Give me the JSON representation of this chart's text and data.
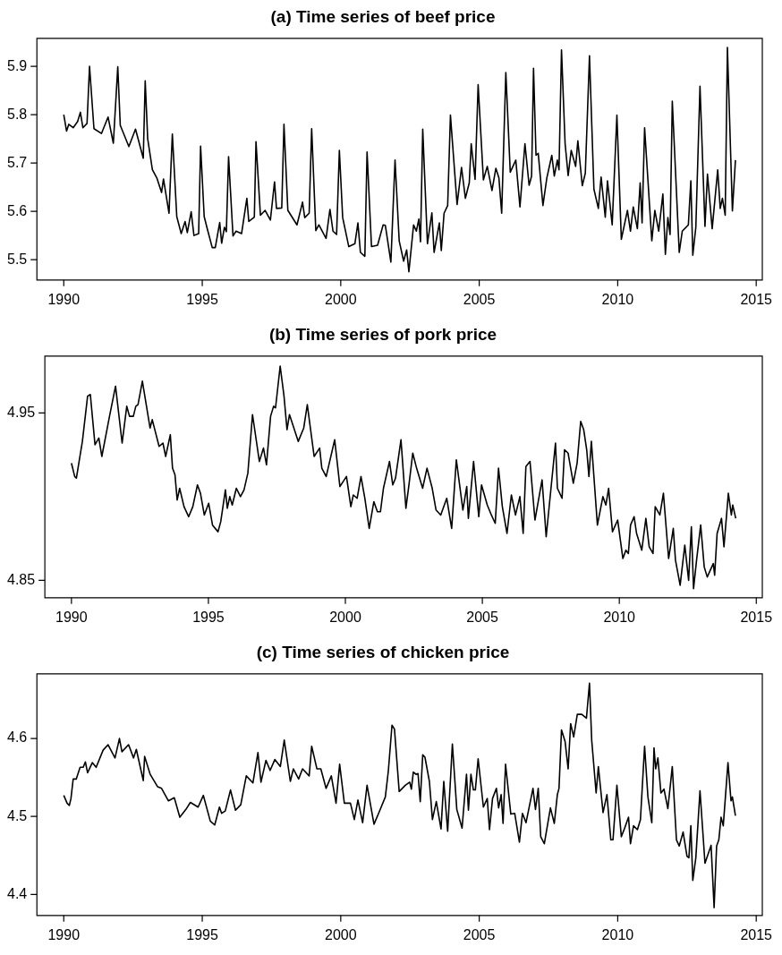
{
  "chart_data": [
    {
      "type": "line",
      "title": "(a) Time series of beef price",
      "xlim": [
        1989.03,
        2015.22
      ],
      "xticks": [
        1990,
        1995,
        2000,
        2005,
        2010,
        2015
      ],
      "ylim": [
        5.458,
        5.958
      ],
      "yticks": [
        5.5,
        5.6,
        5.7,
        5.8,
        5.9
      ],
      "grid": false,
      "legend": false,
      "marker": "none",
      "x": [
        1990.0,
        1990.1,
        1990.18,
        1990.34,
        1990.5,
        1990.6,
        1990.69,
        1990.84,
        1990.93,
        1991.09,
        1991.36,
        1991.6,
        1991.79,
        1991.95,
        1992.04,
        1992.35,
        1992.59,
        1992.87,
        1992.94,
        1993.03,
        1993.2,
        1993.36,
        1993.53,
        1993.6,
        1993.8,
        1993.92,
        1994.08,
        1994.24,
        1994.38,
        1994.46,
        1994.6,
        1994.7,
        1994.87,
        1994.94,
        1995.07,
        1995.18,
        1995.36,
        1995.47,
        1995.63,
        1995.7,
        1995.8,
        1995.87,
        1995.95,
        1996.11,
        1996.22,
        1996.42,
        1996.61,
        1996.68,
        1996.88,
        1996.94,
        1997.1,
        1997.27,
        1997.46,
        1997.61,
        1997.68,
        1997.87,
        1997.95,
        1998.09,
        1998.42,
        1998.62,
        1998.7,
        1998.86,
        1998.95,
        1999.1,
        1999.21,
        1999.47,
        1999.61,
        1999.72,
        1999.85,
        1999.95,
        2000.07,
        2000.29,
        2000.51,
        2000.62,
        2000.71,
        2000.87,
        2000.95,
        2001.11,
        2001.33,
        2001.53,
        2001.61,
        2001.81,
        2001.96,
        2002.11,
        2002.27,
        2002.38,
        2002.46,
        2002.63,
        2002.73,
        2002.82,
        2002.88,
        2002.96,
        2003.13,
        2003.29,
        2003.37,
        2003.56,
        2003.63,
        2003.73,
        2003.86,
        2003.96,
        2004.2,
        2004.36,
        2004.5,
        2004.64,
        2004.71,
        2004.85,
        2004.96,
        2005.15,
        2005.29,
        2005.46,
        2005.6,
        2005.71,
        2005.81,
        2005.96,
        2006.12,
        2006.32,
        2006.47,
        2006.65,
        2006.8,
        2006.89,
        2006.96,
        2007.05,
        2007.13,
        2007.3,
        2007.44,
        2007.62,
        2007.71,
        2007.82,
        2007.88,
        2007.97,
        2008.1,
        2008.21,
        2008.32,
        2008.48,
        2008.56,
        2008.72,
        2008.83,
        2008.98,
        2009.14,
        2009.3,
        2009.4,
        2009.55,
        2009.63,
        2009.8,
        2009.97,
        2010.13,
        2010.35,
        2010.46,
        2010.56,
        2010.71,
        2010.81,
        2010.88,
        2010.97,
        2011.23,
        2011.34,
        2011.48,
        2011.63,
        2011.72,
        2011.81,
        2011.89,
        2011.97,
        2012.22,
        2012.33,
        2012.55,
        2012.64,
        2012.71,
        2012.82,
        2012.97,
        2013.15,
        2013.24,
        2013.41,
        2013.61,
        2013.7,
        2013.78,
        2013.88,
        2013.96,
        2014.14,
        2014.25
      ],
      "series": [
        {
          "color": "#000000",
          "values": [
            5.8,
            5.766,
            5.78,
            5.773,
            5.786,
            5.805,
            5.773,
            5.782,
            5.9,
            5.771,
            5.761,
            5.795,
            5.741,
            5.899,
            5.778,
            5.734,
            5.77,
            5.71,
            5.87,
            5.75,
            5.686,
            5.669,
            5.639,
            5.667,
            5.596,
            5.76,
            5.589,
            5.554,
            5.579,
            5.556,
            5.599,
            5.55,
            5.554,
            5.735,
            5.589,
            5.564,
            5.525,
            5.525,
            5.577,
            5.534,
            5.567,
            5.558,
            5.713,
            5.549,
            5.559,
            5.554,
            5.627,
            5.579,
            5.588,
            5.744,
            5.592,
            5.602,
            5.582,
            5.661,
            5.606,
            5.607,
            5.78,
            5.602,
            5.572,
            5.619,
            5.587,
            5.596,
            5.771,
            5.56,
            5.572,
            5.544,
            5.604,
            5.559,
            5.552,
            5.726,
            5.587,
            5.527,
            5.533,
            5.576,
            5.515,
            5.507,
            5.723,
            5.527,
            5.53,
            5.572,
            5.571,
            5.495,
            5.706,
            5.539,
            5.497,
            5.52,
            5.475,
            5.572,
            5.559,
            5.584,
            5.537,
            5.77,
            5.533,
            5.597,
            5.515,
            5.576,
            5.519,
            5.596,
            5.612,
            5.799,
            5.614,
            5.691,
            5.627,
            5.659,
            5.74,
            5.666,
            5.862,
            5.665,
            5.693,
            5.643,
            5.689,
            5.669,
            5.596,
            5.887,
            5.681,
            5.706,
            5.609,
            5.74,
            5.654,
            5.673,
            5.896,
            5.716,
            5.72,
            5.612,
            5.669,
            5.716,
            5.673,
            5.706,
            5.686,
            5.934,
            5.74,
            5.674,
            5.726,
            5.693,
            5.746,
            5.653,
            5.679,
            5.922,
            5.646,
            5.606,
            5.671,
            5.588,
            5.663,
            5.572,
            5.799,
            5.542,
            5.602,
            5.559,
            5.609,
            5.564,
            5.659,
            5.576,
            5.773,
            5.539,
            5.602,
            5.559,
            5.636,
            5.511,
            5.587,
            5.552,
            5.828,
            5.515,
            5.559,
            5.572,
            5.663,
            5.509,
            5.567,
            5.859,
            5.569,
            5.677,
            5.564,
            5.686,
            5.606,
            5.627,
            5.592,
            5.939,
            5.601,
            5.706
          ]
        }
      ]
    },
    {
      "type": "line",
      "title": "(b) Time series of pork price",
      "xlim": [
        1989.03,
        2015.22
      ],
      "xticks": [
        1990,
        1995,
        2000,
        2005,
        2010,
        2015
      ],
      "ylim": [
        4.8396,
        4.984
      ],
      "yticks": [
        4.85,
        4.95
      ],
      "grid": false,
      "legend": false,
      "marker": "none",
      "x": [
        1990.0,
        1990.12,
        1990.18,
        1990.4,
        1990.59,
        1990.69,
        1990.86,
        1991.0,
        1991.11,
        1991.39,
        1991.61,
        1991.85,
        1992.02,
        1992.12,
        1992.26,
        1992.35,
        1992.43,
        1992.59,
        1992.87,
        1992.95,
        1993.2,
        1993.34,
        1993.44,
        1993.61,
        1993.69,
        1993.78,
        1993.86,
        1993.95,
        1994.11,
        1994.28,
        1994.43,
        1994.6,
        1994.71,
        1994.85,
        1995.01,
        1995.15,
        1995.35,
        1995.45,
        1995.62,
        1995.69,
        1995.78,
        1995.87,
        1996.02,
        1996.17,
        1996.3,
        1996.44,
        1996.61,
        1996.86,
        1997.01,
        1997.12,
        1997.27,
        1997.38,
        1997.45,
        1997.62,
        1997.76,
        1997.87,
        1997.96,
        1998.28,
        1998.48,
        1998.61,
        1998.86,
        1999.06,
        1999.14,
        1999.3,
        1999.61,
        1999.8,
        2000.04,
        2000.2,
        2000.29,
        2000.43,
        2000.57,
        2000.71,
        2000.87,
        2001.04,
        2001.17,
        2001.28,
        2001.39,
        2001.61,
        2001.73,
        2001.83,
        2002.03,
        2002.21,
        2002.32,
        2002.46,
        2002.6,
        2002.82,
        2002.98,
        2003.17,
        2003.31,
        2003.48,
        2003.7,
        2003.88,
        2004.05,
        2004.29,
        2004.43,
        2004.49,
        2004.68,
        2004.87,
        2004.97,
        2005.18,
        2005.33,
        2005.47,
        2005.59,
        2005.73,
        2005.9,
        2006.06,
        2006.21,
        2006.37,
        2006.49,
        2006.59,
        2006.74,
        2006.92,
        2007.05,
        2007.18,
        2007.33,
        2007.67,
        2007.74,
        2007.91,
        2008.0,
        2008.13,
        2008.32,
        2008.46,
        2008.59,
        2008.7,
        2008.81,
        2008.89,
        2008.98,
        2009.2,
        2009.4,
        2009.51,
        2009.61,
        2009.75,
        2009.94,
        2010.13,
        2010.24,
        2010.33,
        2010.41,
        2010.54,
        2010.63,
        2010.82,
        2010.97,
        2011.09,
        2011.23,
        2011.31,
        2011.48,
        2011.61,
        2011.8,
        2011.97,
        2012.05,
        2012.22,
        2012.39,
        2012.53,
        2012.63,
        2012.71,
        2012.82,
        2012.97,
        2013.1,
        2013.21,
        2013.43,
        2013.48,
        2013.57,
        2013.73,
        2013.82,
        2013.98,
        2014.09,
        2014.14,
        2014.25
      ],
      "series": [
        {
          "color": "#000000",
          "values": [
            4.92,
            4.912,
            4.911,
            4.933,
            4.96,
            4.961,
            4.931,
            4.935,
            4.924,
            4.948,
            4.966,
            4.932,
            4.954,
            4.948,
            4.948,
            4.954,
            4.955,
            4.969,
            4.941,
            4.946,
            4.93,
            4.932,
            4.924,
            4.937,
            4.917,
            4.913,
            4.898,
            4.905,
            4.894,
            4.888,
            4.894,
            4.907,
            4.902,
            4.889,
            4.896,
            4.883,
            4.879,
            4.885,
            4.904,
            4.893,
            4.9,
            4.895,
            4.905,
            4.9,
            4.904,
            4.914,
            4.949,
            4.921,
            4.929,
            4.919,
            4.948,
            4.954,
            4.953,
            4.978,
            4.96,
            4.94,
            4.949,
            4.933,
            4.941,
            4.955,
            4.924,
            4.929,
            4.917,
            4.912,
            4.934,
            4.906,
            4.912,
            4.894,
            4.901,
            4.899,
            4.912,
            4.899,
            4.881,
            4.897,
            4.891,
            4.891,
            4.905,
            4.921,
            4.907,
            4.911,
            4.934,
            4.893,
            4.907,
            4.926,
            4.917,
            4.905,
            4.917,
            4.905,
            4.892,
            4.889,
            4.899,
            4.881,
            4.922,
            4.892,
            4.906,
            4.887,
            4.921,
            4.888,
            4.907,
            4.895,
            4.889,
            4.884,
            4.917,
            4.894,
            4.878,
            4.901,
            4.889,
            4.9,
            4.878,
            4.918,
            4.921,
            4.886,
            4.898,
            4.91,
            4.876,
            4.932,
            4.905,
            4.899,
            4.928,
            4.926,
            4.908,
            4.92,
            4.945,
            4.94,
            4.928,
            4.912,
            4.933,
            4.883,
            4.9,
            4.895,
            4.905,
            4.879,
            4.886,
            4.863,
            4.868,
            4.866,
            4.883,
            4.888,
            4.878,
            4.868,
            4.887,
            4.87,
            4.866,
            4.894,
            4.889,
            4.902,
            4.863,
            4.881,
            4.862,
            4.847,
            4.871,
            4.85,
            4.882,
            4.845,
            4.862,
            4.883,
            4.858,
            4.852,
            4.86,
            4.853,
            4.878,
            4.887,
            4.87,
            4.902,
            4.889,
            4.895,
            4.887
          ]
        }
      ]
    },
    {
      "type": "line",
      "title": "(c) Time series of chicken price",
      "xlim": [
        1989.03,
        2015.22
      ],
      "xticks": [
        1990,
        1995,
        2000,
        2005,
        2010,
        2015
      ],
      "ylim": [
        4.373,
        4.683
      ],
      "yticks": [
        4.4,
        4.5,
        4.6
      ],
      "grid": false,
      "legend": false,
      "marker": "none",
      "x": [
        1990.0,
        1990.12,
        1990.2,
        1990.26,
        1990.34,
        1990.45,
        1990.59,
        1990.7,
        1990.78,
        1990.86,
        1991.03,
        1991.17,
        1991.42,
        1991.6,
        1991.85,
        1992.01,
        1992.1,
        1992.34,
        1992.52,
        1992.62,
        1992.87,
        1992.92,
        1993.12,
        1993.39,
        1993.53,
        1993.78,
        1993.99,
        1994.19,
        1994.41,
        1994.57,
        1994.85,
        1995.04,
        1995.29,
        1995.45,
        1995.62,
        1995.7,
        1995.83,
        1996.02,
        1996.2,
        1996.39,
        1996.59,
        1996.83,
        1997.01,
        1997.12,
        1997.3,
        1997.45,
        1997.62,
        1997.82,
        1997.96,
        1998.18,
        1998.29,
        1998.48,
        1998.62,
        1998.86,
        1998.95,
        1999.14,
        1999.28,
        1999.47,
        1999.66,
        1999.83,
        1999.96,
        2000.13,
        2000.35,
        2000.49,
        2000.62,
        2000.79,
        2000.95,
        2001.2,
        2001.39,
        2001.61,
        2001.72,
        2001.85,
        2001.94,
        2002.11,
        2002.33,
        2002.49,
        2002.55,
        2002.62,
        2002.72,
        2002.79,
        2002.87,
        2002.96,
        2003.04,
        2003.2,
        2003.31,
        2003.45,
        2003.62,
        2003.72,
        2003.86,
        2004.03,
        2004.19,
        2004.38,
        2004.54,
        2004.61,
        2004.7,
        2004.79,
        2004.86,
        2004.96,
        2005.15,
        2005.29,
        2005.37,
        2005.48,
        2005.62,
        2005.7,
        2005.79,
        2005.86,
        2005.95,
        2006.14,
        2006.28,
        2006.45,
        2006.56,
        2006.69,
        2006.94,
        2007.03,
        2007.13,
        2007.22,
        2007.35,
        2007.57,
        2007.71,
        2007.82,
        2007.88,
        2007.97,
        2008.1,
        2008.21,
        2008.3,
        2008.41,
        2008.54,
        2008.7,
        2008.87,
        2008.98,
        2009.06,
        2009.22,
        2009.3,
        2009.47,
        2009.61,
        2009.75,
        2009.83,
        2009.97,
        2010.13,
        2010.24,
        2010.39,
        2010.46,
        2010.57,
        2010.71,
        2010.82,
        2010.97,
        2011.09,
        2011.23,
        2011.31,
        2011.37,
        2011.45,
        2011.56,
        2011.67,
        2011.81,
        2011.97,
        2012.12,
        2012.22,
        2012.36,
        2012.5,
        2012.57,
        2012.64,
        2012.71,
        2012.82,
        2012.97,
        2013.15,
        2013.37,
        2013.48,
        2013.57,
        2013.65,
        2013.73,
        2013.81,
        2013.98,
        2014.09,
        2014.14,
        2014.25
      ],
      "series": [
        {
          "color": "#000000",
          "values": [
            4.527,
            4.517,
            4.514,
            4.523,
            4.548,
            4.548,
            4.563,
            4.563,
            4.57,
            4.556,
            4.569,
            4.563,
            4.585,
            4.592,
            4.575,
            4.6,
            4.583,
            4.592,
            4.575,
            4.586,
            4.546,
            4.577,
            4.554,
            4.538,
            4.536,
            4.52,
            4.524,
            4.499,
            4.509,
            4.518,
            4.512,
            4.527,
            4.494,
            4.489,
            4.512,
            4.504,
            4.507,
            4.534,
            4.508,
            4.515,
            4.552,
            4.543,
            4.582,
            4.544,
            4.572,
            4.559,
            4.573,
            4.564,
            4.598,
            4.545,
            4.561,
            4.548,
            4.561,
            4.552,
            4.59,
            4.561,
            4.561,
            4.536,
            4.552,
            4.517,
            4.567,
            4.517,
            4.517,
            4.496,
            4.521,
            4.492,
            4.54,
            4.49,
            4.506,
            4.525,
            4.559,
            4.617,
            4.612,
            4.532,
            4.54,
            4.544,
            4.535,
            4.557,
            4.554,
            4.555,
            4.519,
            4.579,
            4.576,
            4.545,
            4.496,
            4.519,
            4.484,
            4.545,
            4.481,
            4.593,
            4.509,
            4.485,
            4.554,
            4.508,
            4.554,
            4.534,
            4.534,
            4.574,
            4.512,
            4.523,
            4.483,
            4.523,
            4.536,
            4.511,
            4.528,
            4.491,
            4.567,
            4.503,
            4.504,
            4.467,
            4.504,
            4.492,
            4.536,
            4.509,
            4.536,
            4.474,
            4.465,
            4.511,
            4.491,
            4.528,
            4.536,
            4.611,
            4.596,
            4.561,
            4.619,
            4.602,
            4.631,
            4.631,
            4.626,
            4.671,
            4.598,
            4.53,
            4.564,
            4.505,
            4.528,
            4.47,
            4.47,
            4.54,
            4.474,
            4.484,
            4.499,
            4.465,
            4.488,
            4.483,
            4.496,
            4.59,
            4.525,
            4.492,
            4.588,
            4.561,
            4.575,
            4.53,
            4.535,
            4.51,
            4.564,
            4.47,
            4.462,
            4.48,
            4.449,
            4.447,
            4.488,
            4.418,
            4.447,
            4.533,
            4.44,
            4.463,
            4.383,
            4.462,
            4.47,
            4.499,
            4.488,
            4.569,
            4.52,
            4.525,
            4.501
          ]
        }
      ]
    }
  ]
}
